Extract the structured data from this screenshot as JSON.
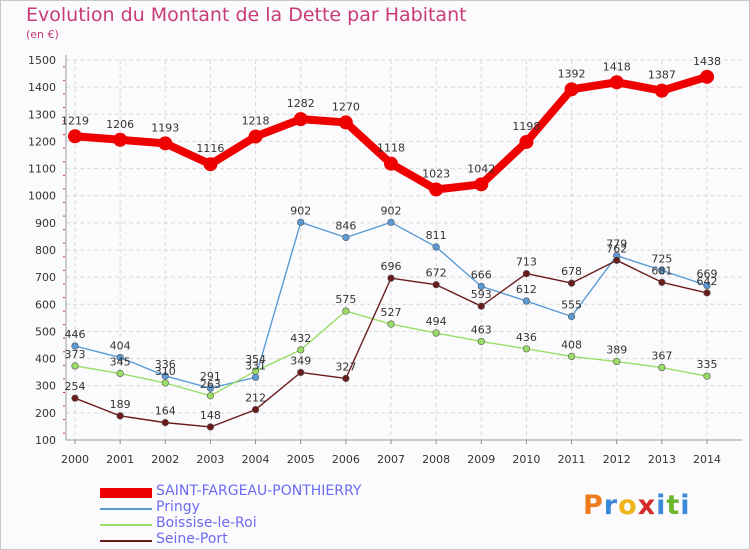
{
  "title": "Evolution du Montant de la Dette par Habitant",
  "unit": "(en €)",
  "brand": {
    "letters": [
      {
        "ch": "P",
        "color": "#f07b1c"
      },
      {
        "ch": "r",
        "color": "#3a8ad9"
      },
      {
        "ch": "o",
        "color": "#f0b41c"
      },
      {
        "ch": "x",
        "color": "#d42a2a"
      },
      {
        "ch": "i",
        "color": "#3a8ad9"
      },
      {
        "ch": "t",
        "color": "#6ab72c"
      },
      {
        "ch": "i",
        "color": "#3a8ad9"
      }
    ]
  },
  "chart_data": {
    "type": "line",
    "x": [
      "2000",
      "2001",
      "2002",
      "2003",
      "2004",
      "2005",
      "2006",
      "2007",
      "2008",
      "2009",
      "2010",
      "2011",
      "2012",
      "2013",
      "2014"
    ],
    "y_ticks": [
      "100",
      "200",
      "300",
      "400",
      "500",
      "600",
      "700",
      "800",
      "900",
      "1000",
      "1100",
      "1200",
      "1300",
      "1400",
      "1500"
    ],
    "ylim": [
      100,
      1500
    ],
    "grid": true,
    "legend_position": "bottom-left",
    "series": [
      {
        "name": "SAINT-FARGEAU-PONTHIERRY",
        "color": "#ee0000",
        "values": [
          1219,
          1206,
          1193,
          1116,
          1218,
          1282,
          1270,
          1118,
          1023,
          1042,
          1198,
          1392,
          1418,
          1387,
          1438
        ],
        "labels": [
          "1219",
          "1206",
          "1193",
          "1116",
          "1218",
          "1282",
          "1270",
          "1118",
          "1023",
          "1042",
          "1198",
          "1392",
          "1418",
          "1387",
          "1438"
        ]
      },
      {
        "name": "Pringy",
        "color": "#5b9bd5",
        "values": [
          446,
          404,
          336,
          291,
          331,
          902,
          846,
          902,
          811,
          666,
          612,
          555,
          779,
          725,
          669
        ],
        "labels": [
          "446",
          "404",
          "336",
          "291",
          "331",
          "902",
          "846",
          "902",
          "811",
          "666",
          "612",
          "555",
          "779",
          "725",
          "669"
        ]
      },
      {
        "name": "Boissise-le-Roi",
        "color": "#99dd66",
        "values": [
          373,
          345,
          310,
          263,
          354,
          432,
          575,
          527,
          494,
          463,
          436,
          408,
          389,
          367,
          335
        ],
        "labels": [
          "373",
          "345",
          "310",
          "263",
          "354",
          "432",
          "575",
          "527",
          "494",
          "463",
          "436",
          "408",
          "389",
          "367",
          "335"
        ]
      },
      {
        "name": "Seine-Port",
        "color": "#6a1c1c",
        "values": [
          254,
          189,
          164,
          148,
          212,
          349,
          327,
          696,
          672,
          593,
          713,
          678,
          762,
          681,
          642
        ],
        "labels": [
          "254",
          "189",
          "164",
          "148",
          "212",
          "349",
          "327",
          "696",
          "672",
          "593",
          "713",
          "678",
          "762",
          "681",
          "642"
        ]
      }
    ]
  }
}
